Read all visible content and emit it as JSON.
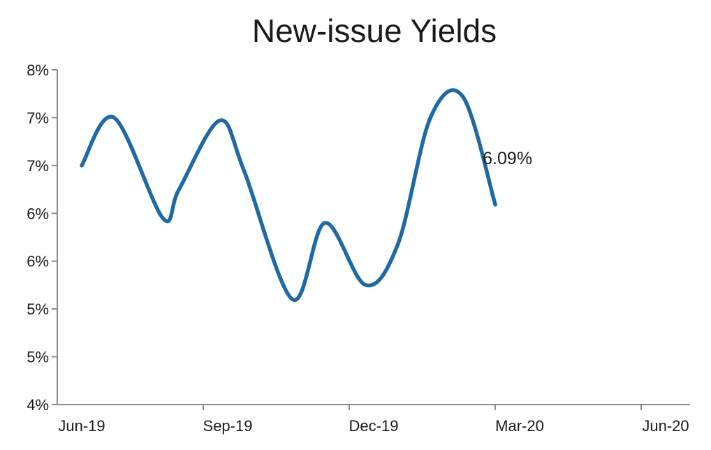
{
  "chart_data": {
    "type": "line",
    "title": "New-issue Yields",
    "xlabel": "",
    "ylabel": "",
    "x_tick_labels": [
      "Jun-19",
      "Sep-19",
      "Dec-19",
      "Mar-20",
      "Jun-20"
    ],
    "y_tick_labels": [
      "4%",
      "5%",
      "5%",
      "6%",
      "6%",
      "7%",
      "7%",
      "8%"
    ],
    "ylim": [
      4.0,
      7.5
    ],
    "grid": false,
    "line_color": "#1f6aa5",
    "series": [
      {
        "values": [
          6.5,
          7.0,
          5.95,
          6.25,
          6.97,
          6.45,
          5.1,
          5.9,
          5.25,
          5.68,
          7.0,
          7.22,
          6.09
        ],
        "x_index": [
          0,
          0.667,
          1.667,
          2,
          2.833,
          3.333,
          4.333,
          5,
          5.833,
          6.5,
          7.167,
          7.833,
          8.5
        ]
      }
    ],
    "annotations": [
      {
        "text": "6.09%",
        "point": "last"
      }
    ]
  }
}
